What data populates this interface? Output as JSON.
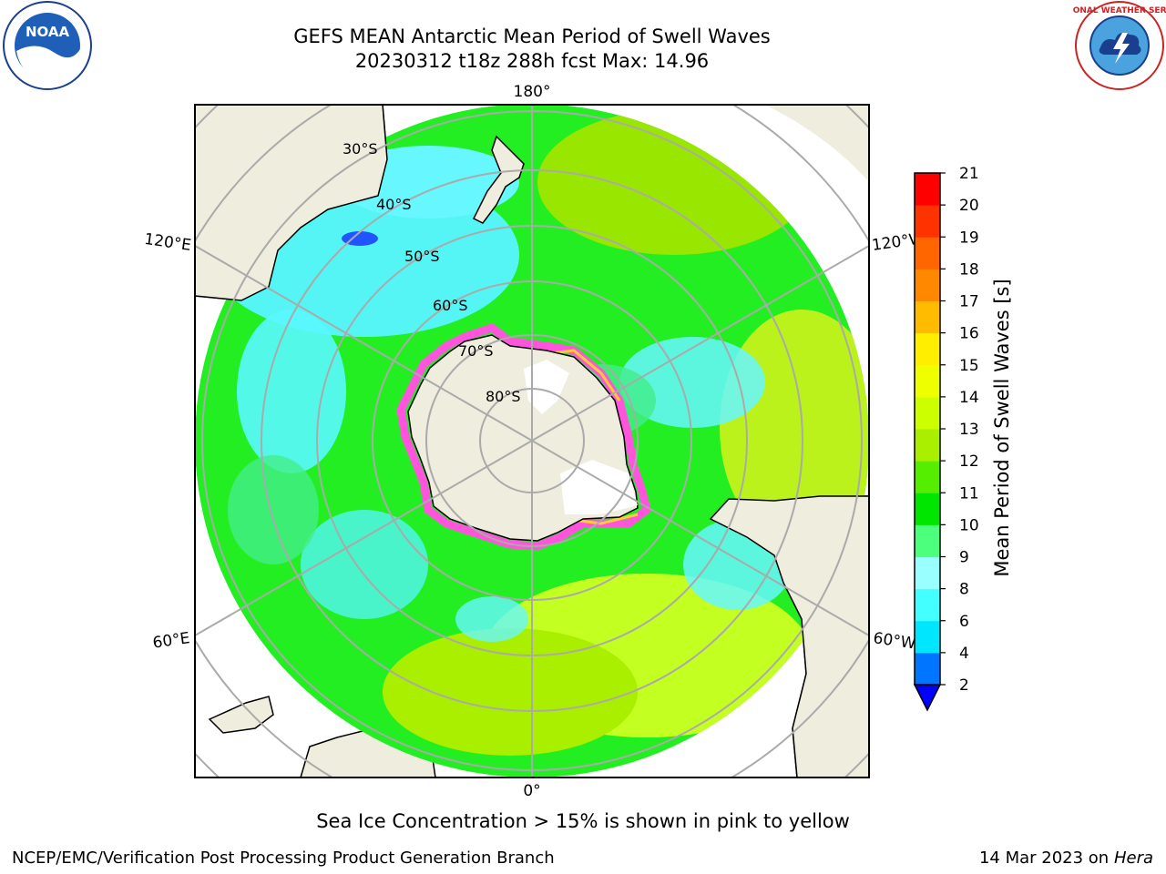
{
  "title": {
    "line1": "GEFS MEAN Antarctic Mean Period of Swell Waves",
    "line2": "20230312 t18z 288h fcst   Max: 14.96"
  },
  "map": {
    "projection": "south-polar-stereographic",
    "lon_labels": {
      "top": "180°",
      "bottom": "0°",
      "upper_left": "120°E",
      "upper_right": "120°W",
      "lower_left": "60°E",
      "lower_right": "60°W"
    },
    "lat_labels": [
      "30°S",
      "40°S",
      "50°S",
      "60°S",
      "70°S",
      "80°S"
    ],
    "colors": {
      "land": "#efedde",
      "ice_edge_pink": "#ff55dd",
      "ice_edge_yellow": "#ffcc33",
      "grid": "#aaaaaa"
    }
  },
  "colorbar": {
    "label": "Mean Period of Swell Waves [s]",
    "ticks": [
      "2",
      "4",
      "6",
      "8",
      "9",
      "10",
      "11",
      "12",
      "13",
      "14",
      "15",
      "16",
      "17",
      "18",
      "19",
      "20",
      "21"
    ],
    "colors": [
      "#0075ff",
      "#00e6ff",
      "#44ffff",
      "#99ffff",
      "#4cff7c",
      "#00e600",
      "#55ee00",
      "#aaee00",
      "#ccff00",
      "#eeff00",
      "#ffee00",
      "#ffbb00",
      "#ff8800",
      "#ff6600",
      "#ff3300",
      "#ff0000"
    ],
    "under_color": "#0000ff"
  },
  "caption": "Sea Ice Concentration > 15% is shown in pink to yellow",
  "footer": {
    "left": "NCEP/EMC/Verification Post Processing Product Generation Branch",
    "date": "14 Mar 2023 on",
    "machine": "Hera"
  },
  "logos": {
    "left": "NOAA",
    "right": "NATIONAL WEATHER SERVICE"
  }
}
